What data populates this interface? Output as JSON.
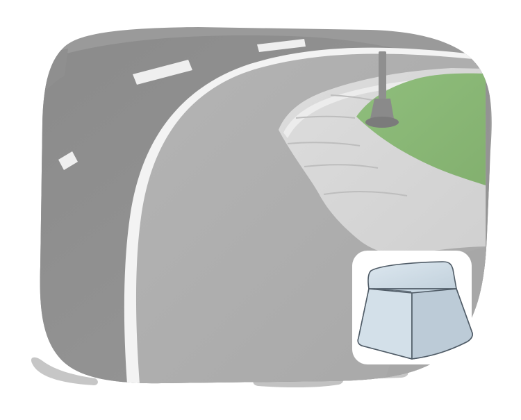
{
  "illustration": {
    "subject": "curved-road-with-curb",
    "inset_subject": "curb-block",
    "colors": {
      "asphalt_dark": "#8d8d8d",
      "asphalt_mid": "#9d9d9d",
      "road_surface": "#a7a7a7",
      "sidewalk": "#d6d6d6",
      "curb_line": "#f4f4f4",
      "grass": "#8fbb7b",
      "pole": "#9a9a9a",
      "brush_stroke": "#c7c7c7",
      "inset_block_face": "#c9d8e3"
    }
  }
}
